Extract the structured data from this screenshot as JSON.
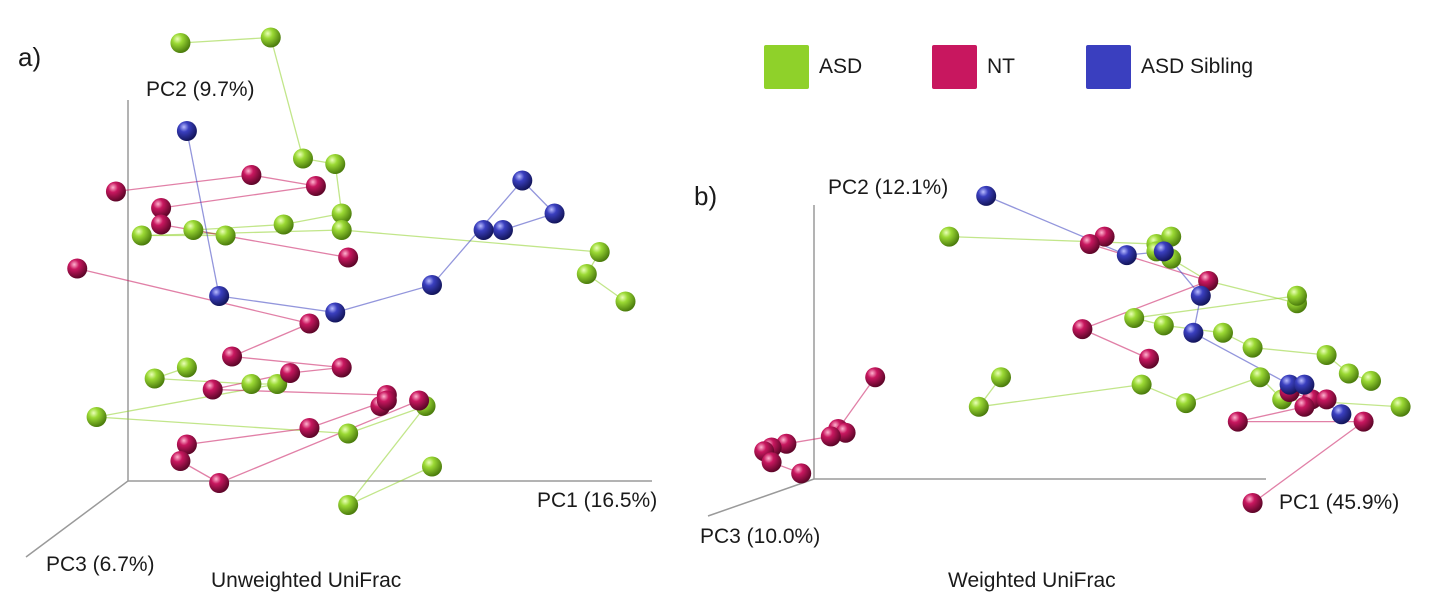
{
  "legend": {
    "items": [
      {
        "label": "ASD",
        "color": "#8fd12a"
      },
      {
        "label": "NT",
        "color": "#c8175f"
      },
      {
        "label": "ASD Sibling",
        "color": "#3a3fbf"
      }
    ]
  },
  "chart_data": [
    {
      "type": "scatter",
      "panel_label": "a)",
      "subtitle": "Unweighted UniFrac",
      "axes": {
        "x": "PC1 (16.5%)",
        "y": "PC2 (9.7%)",
        "z": "PC3 (6.7%)"
      },
      "note": "3D PCoA scatter; points in projected view coordinates (0-100), lines connect paired samples",
      "series": [
        {
          "name": "ASD",
          "color": "#8fd12a",
          "points": [
            [
              21,
              94
            ],
            [
              35,
              95
            ],
            [
              40,
              73
            ],
            [
              45,
              72
            ],
            [
              46,
              63
            ],
            [
              37,
              61
            ],
            [
              23,
              60
            ],
            [
              28,
              59
            ],
            [
              15,
              59
            ],
            [
              46,
              60
            ],
            [
              86,
              56
            ],
            [
              84,
              52
            ],
            [
              90,
              47
            ],
            [
              22,
              35
            ],
            [
              17,
              33
            ],
            [
              32,
              32
            ],
            [
              36,
              32
            ],
            [
              8,
              26
            ],
            [
              47,
              23
            ],
            [
              59,
              28
            ],
            [
              47,
              10
            ],
            [
              60,
              17
            ]
          ]
        },
        {
          "name": "NT",
          "color": "#c8175f",
          "points": [
            [
              11,
              67
            ],
            [
              32,
              70
            ],
            [
              42,
              68
            ],
            [
              18,
              64
            ],
            [
              18,
              61
            ],
            [
              47,
              55
            ],
            [
              5,
              53
            ],
            [
              41,
              43
            ],
            [
              29,
              37
            ],
            [
              46,
              35
            ],
            [
              38,
              34
            ],
            [
              26,
              31
            ],
            [
              53,
              30
            ],
            [
              52,
              28
            ],
            [
              53,
              29
            ],
            [
              41,
              24
            ],
            [
              22,
              21
            ],
            [
              21,
              18
            ],
            [
              27,
              14
            ],
            [
              58,
              29
            ]
          ]
        },
        {
          "name": "ASD Sibling",
          "color": "#3a3fbf",
          "points": [
            [
              22,
              78
            ],
            [
              27,
              48
            ],
            [
              45,
              45
            ],
            [
              60,
              50
            ],
            [
              74,
              69
            ],
            [
              79,
              63
            ],
            [
              71,
              60
            ],
            [
              68,
              60
            ]
          ]
        }
      ]
    },
    {
      "type": "scatter",
      "panel_label": "b)",
      "subtitle": "Weighted UniFrac",
      "axes": {
        "x": "PC1 (45.9%)",
        "y": "PC2 (12.1%)",
        "z": "PC3 (10.0%)"
      },
      "note": "3D PCoA scatter; points in projected view coordinates (0-100), lines connect paired samples",
      "series": [
        {
          "name": "ASD",
          "color": "#8fd12a",
          "points": [
            [
              33,
              82
            ],
            [
              61,
              80
            ],
            [
              63,
              82
            ],
            [
              61,
              78
            ],
            [
              63,
              76
            ],
            [
              68,
              70
            ],
            [
              80,
              64
            ],
            [
              80,
              66
            ],
            [
              58,
              60
            ],
            [
              62,
              58
            ],
            [
              70,
              56
            ],
            [
              74,
              52
            ],
            [
              84,
              50
            ],
            [
              87,
              45
            ],
            [
              90,
              43
            ],
            [
              40,
              44
            ],
            [
              37,
              36
            ],
            [
              59,
              42
            ],
            [
              65,
              37
            ],
            [
              75,
              44
            ],
            [
              78,
              38
            ],
            [
              94,
              36
            ]
          ]
        },
        {
          "name": "NT",
          "color": "#c8175f",
          "points": [
            [
              54,
              82
            ],
            [
              52,
              80
            ],
            [
              68,
              70
            ],
            [
              51,
              57
            ],
            [
              60,
              49
            ],
            [
              23,
              44
            ],
            [
              18,
              30
            ],
            [
              19,
              29
            ],
            [
              17,
              28
            ],
            [
              11,
              26
            ],
            [
              9,
              25
            ],
            [
              8,
              24
            ],
            [
              9,
              21
            ],
            [
              13,
              18
            ],
            [
              79,
              40
            ],
            [
              82,
              38
            ],
            [
              84,
              38
            ],
            [
              81,
              36
            ],
            [
              72,
              32
            ],
            [
              89,
              32
            ],
            [
              74,
              10
            ]
          ]
        },
        {
          "name": "ASD Sibling",
          "color": "#3a3fbf",
          "points": [
            [
              38,
              93
            ],
            [
              57,
              77
            ],
            [
              62,
              78
            ],
            [
              67,
              66
            ],
            [
              66,
              56
            ],
            [
              79,
              42
            ],
            [
              81,
              42
            ],
            [
              86,
              34
            ]
          ]
        }
      ]
    }
  ]
}
